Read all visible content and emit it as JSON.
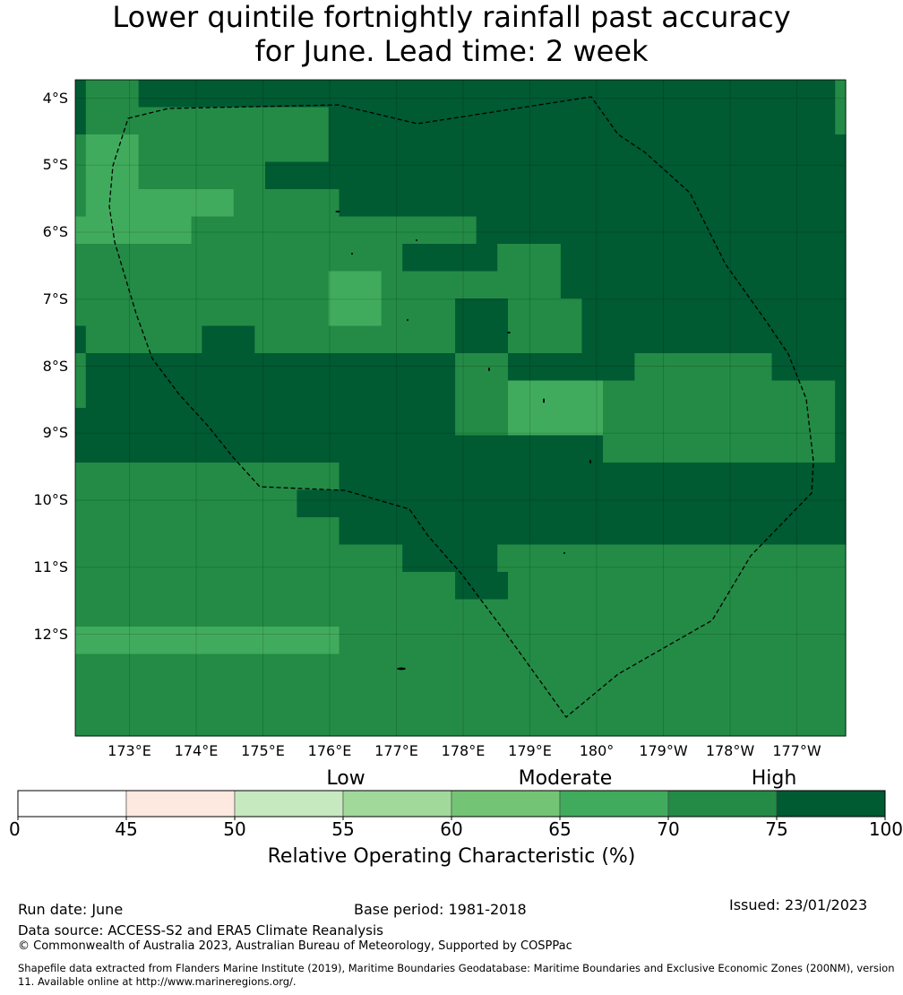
{
  "title_line1": "Lower quintile fortnightly rainfall past accuracy",
  "title_line2": "for June. Lead time: 2 week",
  "map": {
    "lon_start_label": "172.25°E",
    "grid_colors": {
      "4": "#74c476",
      "5": "#41ab5d",
      "6": "#238b45",
      "7": "#005a32"
    },
    "grid": [
      "7666667777777777777777777777777777777777777777777777777777777777777777776",
      "7666666666666666666666667777777777777777777777777777777777777777777777776",
      "6555556666666666666666667777777777777777777777777777777777777777777777777",
      "6555556666666666667777777777777777777777777777777777777777777777777777777",
      "6555555555555556666666666777777777777777777777777777777777777777777777777",
      "5555555555566666666666666666666666666677777777777777777777777777777777777",
      "6666666666666666666666666666666777777777666666777777777777777777777777777",
      "6666666666666666666666665555566666666666666666777777777777777777777777777",
      "6666666666666666666666665555566666667777766666667777777777777777777777777",
      "7666666666667777766666666666666666667777766666667777777777777777777777777",
      "6777777777777777777777777777777777776666677777777777766666666666667777777",
      "6777777777777777777777777777777777776666655555555566666666666666666666667",
      "7777777777777777777777777777777777776666655555555566666666666666666666667",
      "7777777777777777777777777777777777777777777777777766666666666666666666667",
      "6666666666666666666666666777777777777777777777777777777777777777777777777",
      "6666666666666666666667777777777777777777777777777777777777777777777777777",
      "6666666666666666666666666777777777777777777777777777777777777777777777777",
      "6666666666666666666666666666666777777777666666666666666666666666666666666",
      "6666666666666666666666666666666666667777766666666666666666666666666666666",
      "6666666666666666666666666666666666666666666666666666666666666666666666666",
      "5555555555555555555555555666666666666666666666666666666666666666666666666",
      "6666666666666666666666666666666666666666666666666666666666666666666666666",
      "6666666666666666666666666666666666666666666666666666666666666666666666666",
      "6666666666666666666666666666666666666666666666666666666666666666666666666"
    ],
    "lat_labels": [
      "4°S",
      "5°S",
      "6°S",
      "7°S",
      "8°S",
      "9°S",
      "10°S",
      "11°S",
      "12°S"
    ],
    "lon_labels": [
      "173°E",
      "174°E",
      "175°E",
      "176°E",
      "177°E",
      "178°E",
      "179°E",
      "180°",
      "179°W",
      "178°W",
      "177°W"
    ]
  },
  "colorbar": {
    "categories": [
      "Low",
      "Moderate",
      "High"
    ],
    "ticks": [
      "0",
      "45",
      "50",
      "55",
      "60",
      "65",
      "70",
      "75",
      "100"
    ],
    "colors": [
      "#ffffff",
      "#fee9e0",
      "#c7e9c0",
      "#a1d99b",
      "#74c476",
      "#41ab5d",
      "#238b45",
      "#005a32"
    ],
    "title": "Relative Operating Characteristic (%)"
  },
  "footer": {
    "run_date": "Run date: June",
    "base_period": "Base period: 1981-2018",
    "issued": "Issued: 23/01/2023",
    "data_source": "Data source: ACCESS-S2 and ERA5 Climate Reanalysis",
    "copyright": "© Commonwealth of Australia 2023, Australian Bureau of Meteorology, Supported by COSPPac",
    "shapefile": "Shapefile data extracted from Flanders Marine Institute (2019), Maritime Boundaries Geodatabase: Maritime Boundaries and Exclusive Economic Zones (200NM), version 11. Available online at http://www.marineregions.org/."
  }
}
